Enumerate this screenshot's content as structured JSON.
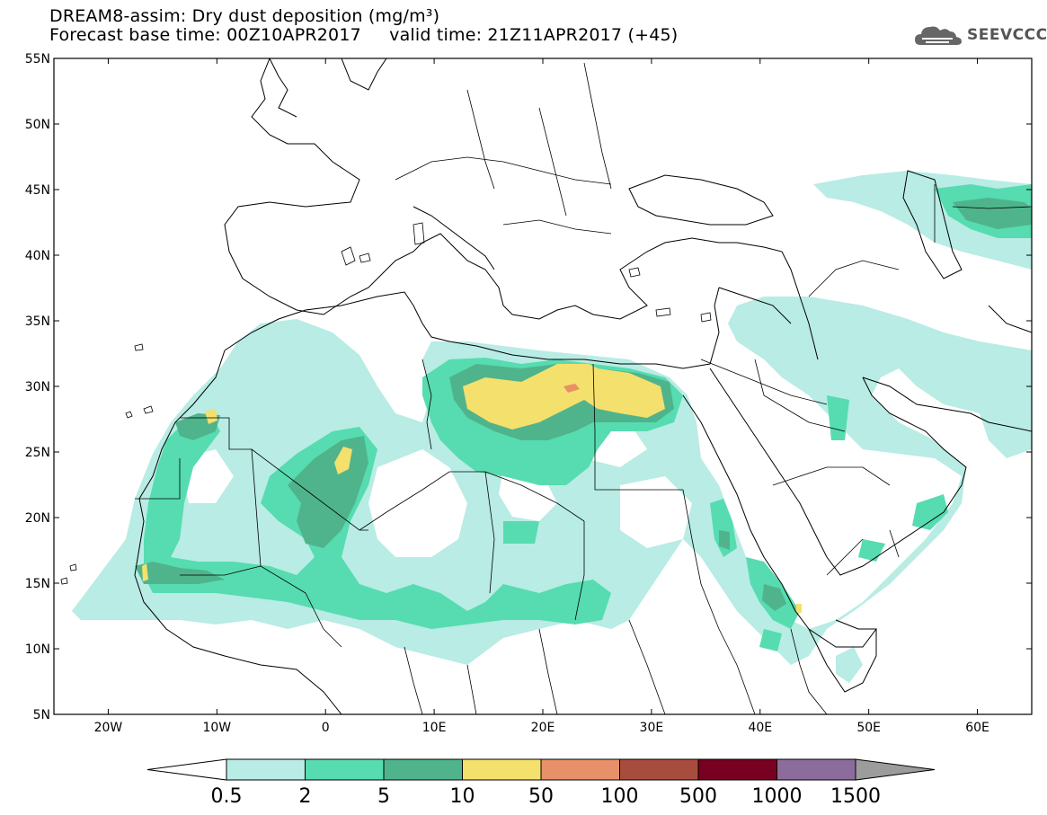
{
  "title": {
    "line1": "DREAM8-assim: Dry dust deposition (mg/m³)",
    "base_label": "Forecast base time: 00Z10APR2017",
    "valid_label": "valid time: 21Z11APR2017 (+45)"
  },
  "logo": {
    "text": "SEEVCCC",
    "icon": "cloud-logo-icon"
  },
  "axes": {
    "lat_labels": [
      "55N",
      "50N",
      "45N",
      "40N",
      "35N",
      "30N",
      "25N",
      "20N",
      "15N",
      "10N",
      "5N"
    ],
    "lon_labels": [
      "20W",
      "10W",
      "0",
      "10E",
      "20E",
      "30E",
      "40E",
      "50E",
      "60E"
    ],
    "lon_range": [
      -25,
      65
    ],
    "lat_range": [
      5,
      55
    ]
  },
  "legend": {
    "levels": [
      "0.5",
      "2",
      "5",
      "10",
      "50",
      "100",
      "500",
      "1000",
      "1500"
    ],
    "colors": [
      "#b8ece4",
      "#56dcb0",
      "#4fb48c",
      "#f4e06c",
      "#e8906a",
      "#a84c3e",
      "#780020",
      "#8c6c9c",
      "#9c9c9c"
    ]
  }
}
